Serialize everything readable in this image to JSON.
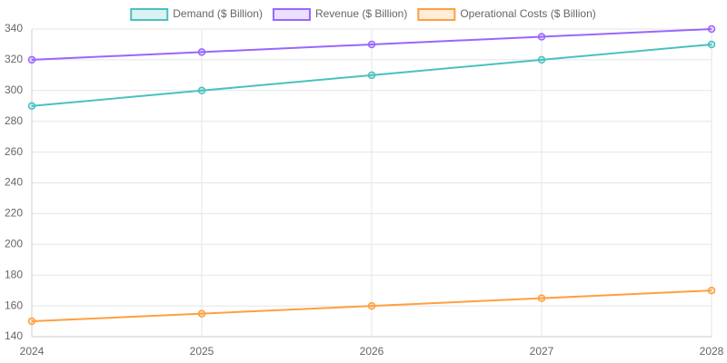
{
  "chart_data": {
    "type": "line",
    "categories": [
      "2024",
      "2025",
      "2026",
      "2027",
      "2028"
    ],
    "series": [
      {
        "name": "Demand ($ Billion)",
        "color": "#4bc0c0",
        "values": [
          290,
          300,
          310,
          320,
          330
        ]
      },
      {
        "name": "Revenue ($ Billion)",
        "color": "#9966ff",
        "values": [
          320,
          325,
          330,
          335,
          340
        ]
      },
      {
        "name": "Operational Costs ($ Billion)",
        "color": "#ff9f40",
        "values": [
          150,
          155,
          160,
          165,
          170
        ]
      }
    ],
    "ylim": [
      140,
      340
    ],
    "yticks": [
      140,
      160,
      180,
      200,
      220,
      240,
      260,
      280,
      300,
      320,
      340
    ],
    "grid": true,
    "legend": "top"
  }
}
